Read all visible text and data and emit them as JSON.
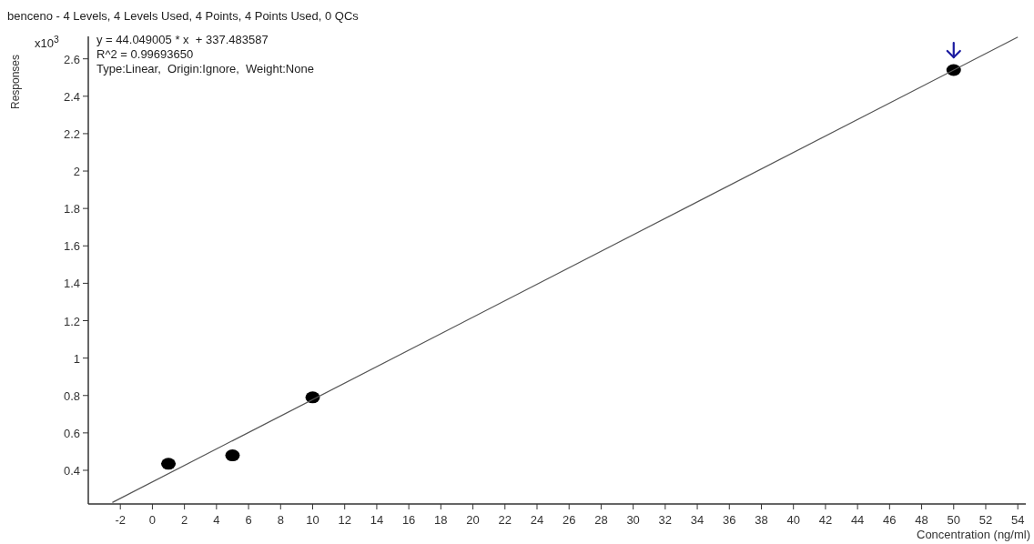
{
  "chart_data": {
    "type": "scatter",
    "title": "benceno - 4 Levels, 4 Levels Used, 4 Points, 4 Points Used, 0 QCs",
    "xlabel": "Concentration (ng/ml)",
    "ylabel": "Responses",
    "annotations": [
      "x10$^{3}$",
      "y = 44.049005 * x  + 337.483587",
      "R^2 = 0.99693650",
      "Type:Linear,  Origin:Ignore,  Weight:None"
    ],
    "xlim": [
      -4,
      54.5
    ],
    "ylim": [
      0.22,
      2.72
    ],
    "xticks": [
      -2,
      0,
      2,
      4,
      6,
      8,
      10,
      12,
      14,
      16,
      18,
      20,
      22,
      24,
      26,
      28,
      30,
      32,
      34,
      36,
      38,
      40,
      42,
      44,
      46,
      48,
      50,
      52,
      54
    ],
    "yticks": [
      0.4,
      0.6,
      0.8,
      1,
      1.2,
      1.4,
      1.6,
      1.8,
      2,
      2.2,
      2.4,
      2.6
    ],
    "grid": false,
    "marker": "circle",
    "series": [
      {
        "color": "#000000",
        "x": [
          1,
          5,
          10,
          50
        ],
        "values": [
          0.435,
          0.48,
          0.79,
          2.54
        ]
      },
      {
        "type": "line",
        "color": "#555555",
        "line_style": "solid",
        "marker": "none",
        "x": [
          -2.5,
          54
        ],
        "values": [
          0.228,
          2.716
        ]
      }
    ]
  }
}
